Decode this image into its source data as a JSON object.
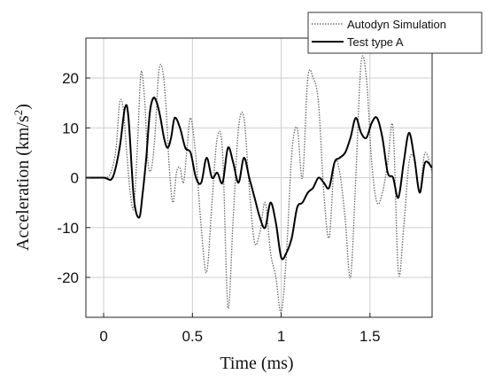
{
  "chart_data": {
    "type": "line",
    "title": "",
    "xlabel": "Time (ms)",
    "ylabel_main": "Acceleration (km/s",
    "ylabel_sup": "2",
    "ylabel_tail": ")",
    "xlim": [
      -0.1,
      1.85
    ],
    "ylim": [
      -28,
      28
    ],
    "xticks": [
      0,
      0.5,
      1,
      1.5
    ],
    "xtick_labels": [
      "0",
      "0.5",
      "1",
      "1.5"
    ],
    "yticks": [
      -20,
      -10,
      0,
      10,
      20
    ],
    "ytick_labels": [
      "-20",
      "-10",
      "0",
      "10",
      "20"
    ],
    "grid": true,
    "legend_position": "top-right",
    "series": [
      {
        "name": "Autodyn Simulation",
        "style": "dotted",
        "color": "#666666",
        "x": [
          -0.1,
          0.0,
          0.04,
          0.07,
          0.09,
          0.11,
          0.13,
          0.15,
          0.17,
          0.19,
          0.21,
          0.23,
          0.25,
          0.27,
          0.29,
          0.31,
          0.33,
          0.35,
          0.37,
          0.39,
          0.41,
          0.43,
          0.45,
          0.47,
          0.49,
          0.52,
          0.55,
          0.58,
          0.61,
          0.64,
          0.67,
          0.7,
          0.73,
          0.76,
          0.79,
          0.82,
          0.85,
          0.88,
          0.91,
          0.94,
          0.97,
          1.0,
          1.03,
          1.06,
          1.09,
          1.12,
          1.15,
          1.18,
          1.21,
          1.24,
          1.27,
          1.3,
          1.33,
          1.36,
          1.39,
          1.42,
          1.45,
          1.48,
          1.51,
          1.54,
          1.57,
          1.6,
          1.63,
          1.66,
          1.69,
          1.72,
          1.75,
          1.78,
          1.81,
          1.85
        ],
        "y": [
          0,
          0,
          1,
          6,
          15,
          14,
          5,
          -3,
          -6,
          6,
          21,
          16,
          3,
          2,
          9,
          21,
          22,
          15,
          2,
          -5,
          1,
          2,
          -1,
          6,
          12,
          4,
          -10,
          -19,
          -5,
          8,
          5,
          -26,
          -8,
          10,
          12,
          -2,
          -13,
          -11,
          -5,
          -15,
          -20,
          -27,
          -15,
          5,
          10,
          0,
          20,
          20,
          15,
          -3,
          -12,
          3,
          1,
          -8,
          -20,
          0,
          23,
          20,
          3,
          -5,
          -3,
          3,
          10,
          -19,
          -10,
          3,
          4,
          -3,
          5,
          1
        ]
      },
      {
        "name": "Test type A",
        "style": "solid",
        "color": "#000000",
        "x": [
          -0.1,
          0.0,
          0.05,
          0.09,
          0.12,
          0.14,
          0.17,
          0.2,
          0.22,
          0.24,
          0.26,
          0.28,
          0.3,
          0.32,
          0.34,
          0.36,
          0.38,
          0.4,
          0.43,
          0.46,
          0.49,
          0.52,
          0.55,
          0.58,
          0.61,
          0.64,
          0.67,
          0.7,
          0.73,
          0.76,
          0.79,
          0.82,
          0.85,
          0.88,
          0.91,
          0.94,
          0.97,
          1.0,
          1.03,
          1.06,
          1.09,
          1.12,
          1.15,
          1.18,
          1.21,
          1.24,
          1.27,
          1.3,
          1.33,
          1.36,
          1.39,
          1.42,
          1.45,
          1.48,
          1.51,
          1.54,
          1.57,
          1.6,
          1.63,
          1.66,
          1.69,
          1.72,
          1.75,
          1.78,
          1.81,
          1.85
        ],
        "y": [
          0,
          0,
          0,
          6,
          14,
          12,
          -4,
          -8,
          -3,
          4,
          13,
          16,
          15,
          12,
          8,
          6,
          8,
          12,
          10,
          6,
          5,
          0,
          -1,
          4,
          0,
          1,
          -1,
          6,
          3,
          -1,
          4,
          0,
          -4,
          -8,
          -10,
          -5,
          -9,
          -16,
          -15,
          -12,
          -6,
          -5,
          -3,
          -2,
          0,
          -1,
          -2,
          3,
          4,
          5,
          8,
          12,
          9,
          8,
          11,
          12,
          8,
          1,
          0,
          -4,
          3,
          9,
          4,
          -3,
          3,
          2
        ]
      }
    ]
  }
}
